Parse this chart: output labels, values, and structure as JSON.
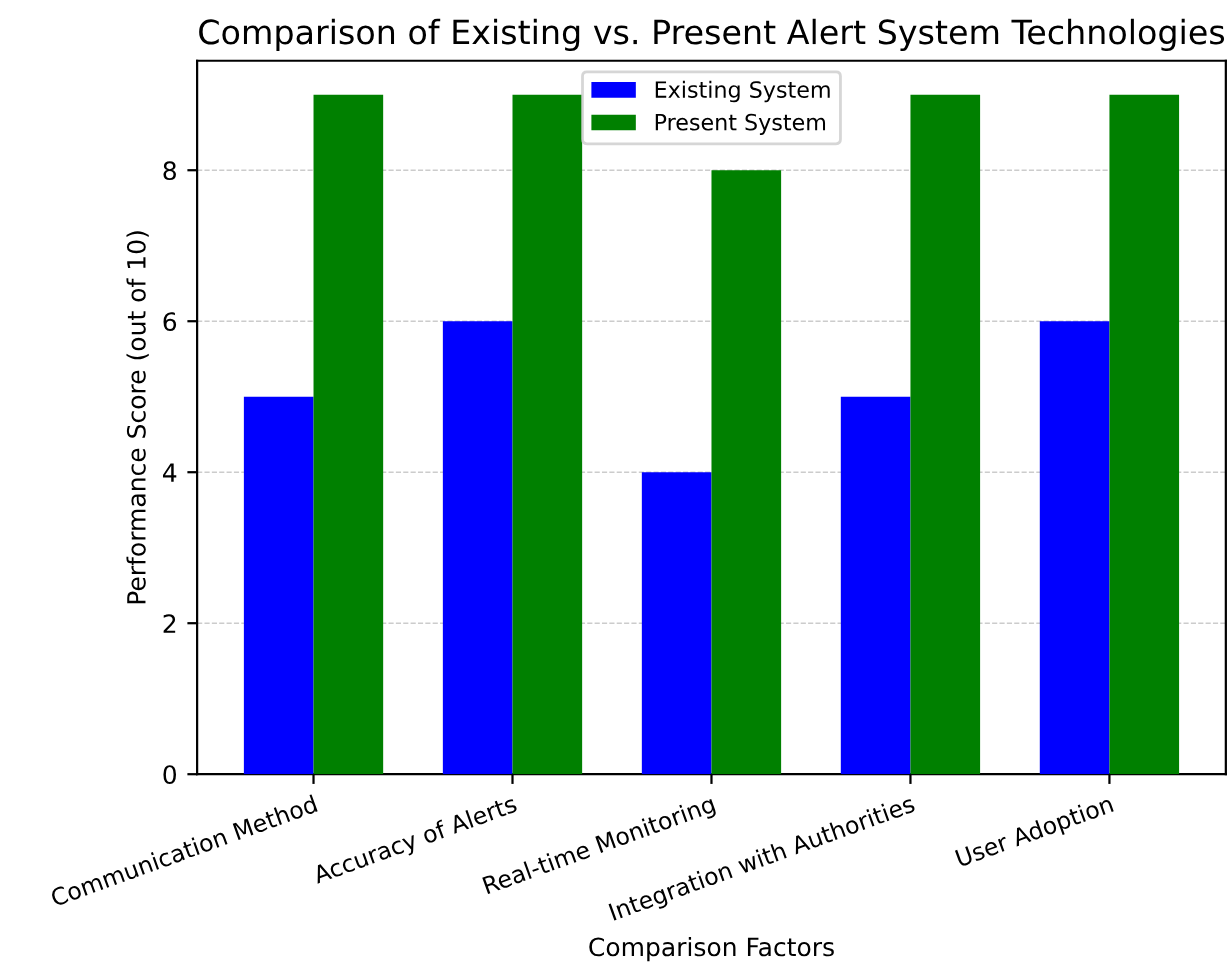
{
  "chart_data": {
    "type": "bar",
    "title": "Comparison of Existing vs. Present Alert System Technologies",
    "xlabel": "Comparison Factors",
    "ylabel": "Performance Score (out of 10)",
    "categories": [
      "Communication Method",
      "Accuracy of Alerts",
      "Real-time Monitoring",
      "Integration with Authorities",
      "User Adoption"
    ],
    "series": [
      {
        "name": "Existing System",
        "color": "#0000ff",
        "values": [
          5,
          6,
          4,
          5,
          6
        ]
      },
      {
        "name": "Present System",
        "color": "#008000",
        "values": [
          9,
          9,
          8,
          9,
          9
        ]
      }
    ],
    "ylim": [
      0,
      9.45
    ],
    "yticks": [
      0,
      2,
      4,
      6,
      8
    ],
    "grid": "y",
    "legend": "top"
  }
}
